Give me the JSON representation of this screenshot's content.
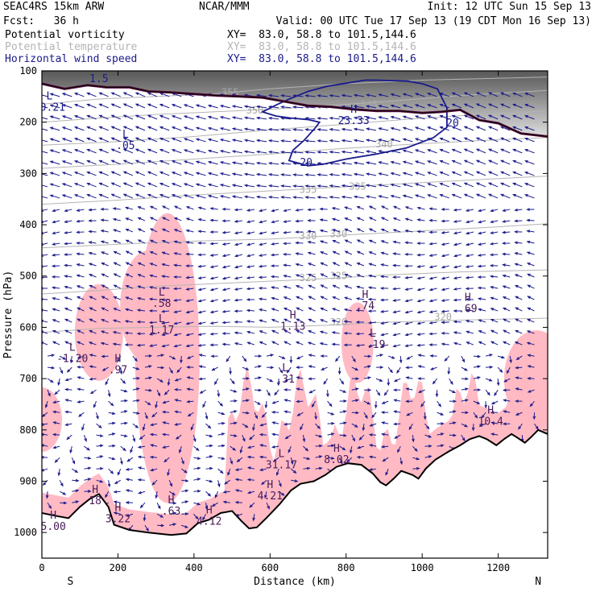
{
  "header": {
    "model": "SEAC4RS 15km ARW",
    "org": "NCAR/MMM",
    "init": "Init: 12 UTC Sun 15 Sep 13",
    "fcst": "Fcst:   36 h",
    "valid": "Valid: 00 UTC Tue 17 Sep 13 (19 CDT Mon 16 Sep 13)"
  },
  "legend": [
    {
      "label": "Potential vorticity",
      "xy": "XY=  83.0, 58.8 to 101.5,144.6",
      "color": "#000000"
    },
    {
      "label": "Potential temperature",
      "xy": "XY=  83.0, 58.8 to 101.5,144.6",
      "color": "#b4b4b4"
    },
    {
      "label": "Horizontal wind speed",
      "xy": "XY=  83.0, 58.8 to 101.5,144.6",
      "color": "#1a1a8c"
    }
  ],
  "chart_data": {
    "type": "cross-section",
    "xlabel": "Distance (km)",
    "ylabel": "Pressure (hPa)",
    "xlim": [
      0,
      1330
    ],
    "ylim": [
      1050,
      100
    ],
    "x_ticks": [
      0,
      200,
      400,
      600,
      800,
      1000,
      1200
    ],
    "y_ticks": [
      100,
      200,
      300,
      400,
      500,
      600,
      700,
      800,
      900,
      1000
    ],
    "end_labels": {
      "left": "S",
      "right": "N"
    },
    "terrain_pressure": [
      [
        0,
        962
      ],
      [
        40,
        968
      ],
      [
        70,
        972
      ],
      [
        100,
        950
      ],
      [
        125,
        935
      ],
      [
        150,
        925
      ],
      [
        175,
        950
      ],
      [
        190,
        985
      ],
      [
        230,
        995
      ],
      [
        280,
        1000
      ],
      [
        340,
        1005
      ],
      [
        380,
        1002
      ],
      [
        410,
        982
      ],
      [
        440,
        975
      ],
      [
        470,
        962
      ],
      [
        500,
        958
      ],
      [
        525,
        978
      ],
      [
        545,
        992
      ],
      [
        565,
        990
      ],
      [
        590,
        972
      ],
      [
        625,
        945
      ],
      [
        655,
        918
      ],
      [
        680,
        905
      ],
      [
        715,
        900
      ],
      [
        745,
        888
      ],
      [
        775,
        872
      ],
      [
        805,
        865
      ],
      [
        840,
        868
      ],
      [
        870,
        885
      ],
      [
        890,
        902
      ],
      [
        905,
        908
      ],
      [
        925,
        895
      ],
      [
        945,
        880
      ],
      [
        975,
        888
      ],
      [
        990,
        895
      ],
      [
        1010,
        875
      ],
      [
        1035,
        858
      ],
      [
        1070,
        842
      ],
      [
        1100,
        830
      ],
      [
        1125,
        818
      ],
      [
        1150,
        812
      ],
      [
        1170,
        818
      ],
      [
        1195,
        830
      ],
      [
        1215,
        818
      ],
      [
        1235,
        808
      ],
      [
        1250,
        815
      ],
      [
        1270,
        825
      ],
      [
        1285,
        815
      ],
      [
        1305,
        800
      ],
      [
        1330,
        808
      ]
    ],
    "pv_contour": [
      [
        0,
        125
      ],
      [
        60,
        135
      ],
      [
        120,
        128
      ],
      [
        170,
        132
      ],
      [
        230,
        132
      ],
      [
        280,
        140
      ],
      [
        340,
        142
      ],
      [
        400,
        145
      ],
      [
        460,
        148
      ],
      [
        520,
        150
      ],
      [
        580,
        152
      ],
      [
        640,
        160
      ],
      [
        700,
        168
      ],
      [
        760,
        170
      ],
      [
        820,
        175
      ],
      [
        880,
        178
      ],
      [
        940,
        178
      ],
      [
        1000,
        182
      ],
      [
        1050,
        180
      ],
      [
        1100,
        176
      ],
      [
        1150,
        196
      ],
      [
        1200,
        202
      ],
      [
        1260,
        222
      ],
      [
        1330,
        228
      ]
    ],
    "wind_contour_20": [
      [
        580,
        180
      ],
      [
        620,
        165
      ],
      [
        660,
        152
      ],
      [
        700,
        140
      ],
      [
        750,
        130
      ],
      [
        800,
        124
      ],
      [
        850,
        118
      ],
      [
        880,
        118
      ],
      [
        960,
        120
      ],
      [
        1000,
        125
      ],
      [
        1040,
        135
      ],
      [
        1065,
        172
      ],
      [
        1065,
        210
      ],
      [
        1030,
        230
      ],
      [
        960,
        250
      ],
      [
        880,
        262
      ],
      [
        800,
        272
      ],
      [
        740,
        282
      ],
      [
        700,
        285
      ],
      [
        650,
        275
      ],
      [
        660,
        255
      ],
      [
        690,
        235
      ],
      [
        720,
        210
      ],
      [
        730,
        200
      ],
      [
        700,
        195
      ],
      [
        655,
        192
      ],
      [
        615,
        188
      ]
    ],
    "theta_contours": [
      {
        "label": "355",
        "points": [
          [
            0,
            165
          ],
          [
            150,
            155
          ],
          [
            300,
            150
          ],
          [
            450,
            145
          ],
          [
            600,
            135
          ],
          [
            700,
            130
          ],
          [
            800,
            125
          ],
          [
            1000,
            118
          ],
          [
            1330,
            112
          ]
        ]
      },
      {
        "label": "350",
        "points": [
          [
            0,
            200
          ],
          [
            150,
            192
          ],
          [
            300,
            185
          ],
          [
            450,
            180
          ],
          [
            600,
            175
          ],
          [
            750,
            168
          ],
          [
            900,
            160
          ],
          [
            1100,
            148
          ],
          [
            1330,
            138
          ]
        ]
      },
      {
        "label": "345",
        "points": [
          [
            0,
            245
          ],
          [
            200,
            238
          ],
          [
            400,
            228
          ],
          [
            600,
            215
          ],
          [
            780,
            205
          ],
          [
            950,
            195
          ],
          [
            1150,
            185
          ],
          [
            1330,
            178
          ]
        ]
      },
      {
        "label": "340",
        "points": [
          [
            0,
            290
          ],
          [
            200,
            282
          ],
          [
            400,
            272
          ],
          [
            600,
            262
          ],
          [
            780,
            252
          ],
          [
            950,
            244
          ],
          [
            1150,
            236
          ],
          [
            1330,
            230
          ]
        ]
      },
      {
        "label": "335",
        "points": [
          [
            0,
            360
          ],
          [
            200,
            352
          ],
          [
            400,
            342
          ],
          [
            600,
            334
          ],
          [
            800,
            326
          ],
          [
            1000,
            318
          ],
          [
            1200,
            310
          ],
          [
            1330,
            305
          ]
        ]
      },
      {
        "label": "330",
        "points": [
          [
            0,
            445
          ],
          [
            200,
            438
          ],
          [
            400,
            432
          ],
          [
            600,
            428
          ],
          [
            800,
            420
          ],
          [
            1000,
            412
          ],
          [
            1200,
            404
          ],
          [
            1330,
            398
          ]
        ]
      },
      {
        "label": "325",
        "points": [
          [
            0,
            535
          ],
          [
            150,
            528
          ],
          [
            300,
            520
          ],
          [
            450,
            515
          ],
          [
            600,
            510
          ],
          [
            750,
            505
          ],
          [
            900,
            498
          ],
          [
            1100,
            492
          ],
          [
            1330,
            488
          ]
        ]
      },
      {
        "label": "320",
        "points": [
          [
            0,
            610
          ],
          [
            150,
            602
          ],
          [
            300,
            600
          ],
          [
            450,
            598
          ],
          [
            600,
            600
          ],
          [
            750,
            596
          ],
          [
            900,
            590
          ],
          [
            1100,
            586
          ],
          [
            1330,
            582
          ]
        ]
      }
    ],
    "pv_labels": [
      {
        "x": 150,
        "y": 122,
        "text": "1.5"
      },
      {
        "x": 20,
        "y": 178,
        "text": "10.21",
        "kind": "L"
      },
      {
        "x": 220,
        "y": 252,
        "text": ".05",
        "kind": "L"
      },
      {
        "x": 820,
        "y": 204,
        "text": "23.33",
        "kind": "H"
      }
    ],
    "wind_labels": [
      {
        "x": 695,
        "y": 285,
        "text": "20"
      },
      {
        "x": 1080,
        "y": 208,
        "text": "20"
      }
    ],
    "theta_labels": [
      {
        "x": 495,
        "y": 148,
        "text": "355"
      },
      {
        "x": 560,
        "y": 183,
        "text": "350"
      },
      {
        "x": 860,
        "y": 172,
        "text": "345"
      },
      {
        "x": 900,
        "y": 249,
        "text": "340"
      },
      {
        "x": 700,
        "y": 338,
        "text": "335"
      },
      {
        "x": 830,
        "y": 332,
        "text": "335"
      },
      {
        "x": 700,
        "y": 428,
        "text": "330"
      },
      {
        "x": 780,
        "y": 424,
        "text": "330"
      },
      {
        "x": 700,
        "y": 510,
        "text": "325"
      },
      {
        "x": 780,
        "y": 506,
        "text": "325"
      },
      {
        "x": 780,
        "y": 596,
        "text": "320"
      },
      {
        "x": 1055,
        "y": 586,
        "text": "320"
      }
    ],
    "extrema": [
      {
        "kind": "L",
        "value": ".58",
        "x": 315,
        "y": 560
      },
      {
        "kind": "L",
        "value": "1.17",
        "x": 315,
        "y": 612
      },
      {
        "kind": "L",
        "value": "-1.20",
        "x": 80,
        "y": 668
      },
      {
        "kind": "H",
        "value": ".97",
        "x": 200,
        "y": 690
      },
      {
        "kind": "H",
        "value": "1.13",
        "x": 660,
        "y": 605
      },
      {
        "kind": "L",
        "value": ".31",
        "x": 640,
        "y": 708
      },
      {
        "kind": "H",
        "value": ".74",
        "x": 850,
        "y": 565
      },
      {
        "kind": "L",
        "value": "-.19",
        "x": 870,
        "y": 640
      },
      {
        "kind": "H",
        "value": ".69",
        "x": 1120,
        "y": 570
      },
      {
        "kind": "H",
        "value": "10.4",
        "x": 1180,
        "y": 790
      },
      {
        "kind": "H",
        "value": "8.02",
        "x": 775,
        "y": 865
      },
      {
        "kind": "L",
        "value": "31.17",
        "x": 630,
        "y": 875
      },
      {
        "kind": "H",
        "value": "4.21",
        "x": 600,
        "y": 935
      },
      {
        "kind": "H",
        "value": "4.12",
        "x": 440,
        "y": 985
      },
      {
        "kind": "H",
        "value": ".63",
        "x": 340,
        "y": 965
      },
      {
        "kind": "H",
        "value": "3.22",
        "x": 200,
        "y": 980
      },
      {
        "kind": "H",
        "value": "5.00",
        "x": 30,
        "y": 995
      },
      {
        "kind": "H",
        "value": "18",
        "x": 140,
        "y": 945
      }
    ]
  }
}
